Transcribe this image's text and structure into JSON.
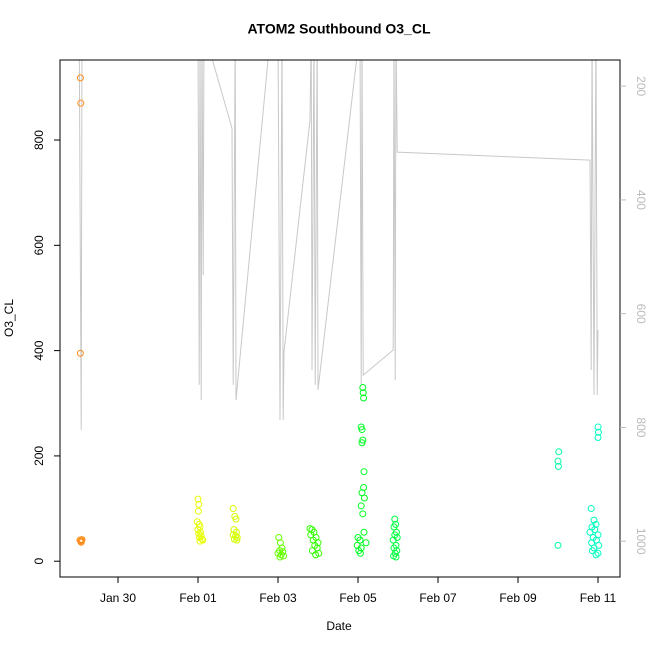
{
  "chart_data": {
    "type": "scatter",
    "title": "ATOM2 Southbound O3_CL",
    "x_label": "Date",
    "y_label": "O3_CL",
    "xlim": [
      28.55,
      42.55
    ],
    "xticks": [
      {
        "value": 30,
        "label": "Jan 30"
      },
      {
        "value": 32,
        "label": "Feb 01"
      },
      {
        "value": 34,
        "label": "Feb 03"
      },
      {
        "value": 36,
        "label": "Feb 05"
      },
      {
        "value": 38,
        "label": "Feb 07"
      },
      {
        "value": 40,
        "label": "Feb 09"
      },
      {
        "value": 42,
        "label": "Feb 11"
      }
    ],
    "ylim": [
      -30,
      952
    ],
    "yticks": [
      0,
      200,
      400,
      600,
      800
    ],
    "y2lim": [
      1063,
      154
    ],
    "y2ticks": [
      200,
      400,
      600,
      800,
      1000
    ],
    "y2color": "#bbbbbb",
    "series": [
      {
        "type": "scatter",
        "x": [
          29.06,
          29.07,
          29.06,
          29.05,
          29.07,
          29.08,
          29.1,
          29.09,
          32.0,
          32.02,
          32.01,
          31.98,
          32.03,
          32.05,
          32.0,
          32.06,
          32.02,
          32.08,
          32.04,
          32.1,
          32.12,
          32.05,
          32.88,
          32.92,
          32.95,
          32.9,
          32.96,
          32.88,
          32.94,
          32.98,
          32.91,
          32.97,
          34.02,
          34.06,
          34.1,
          34.04,
          34.12,
          34.0,
          34.08,
          34.14,
          34.05,
          34.8,
          34.85,
          34.9,
          34.82,
          34.95,
          34.88,
          35.0,
          34.92,
          34.98,
          34.86,
          35.02,
          34.94,
          36.12,
          36.13,
          36.14,
          36.08,
          36.1,
          36.12,
          36.1,
          36.15,
          36.14,
          36.1,
          36.16,
          36.08,
          36.12,
          36.15,
          36.0,
          36.05,
          36.2,
          35.98,
          36.08,
          36.02,
          36.06,
          36.92,
          36.94,
          36.9,
          36.96,
          36.92,
          36.98,
          36.88,
          36.95,
          36.9,
          36.97,
          36.93,
          36.89,
          36.95,
          41.02,
          41.0,
          41.01,
          41.0,
          42.0,
          42.01,
          42.0,
          41.83,
          41.9,
          41.95,
          41.85,
          41.92,
          41.8,
          42.0,
          41.88,
          41.96,
          41.84,
          42.02,
          41.9,
          41.86,
          42.0,
          41.95
        ],
        "values": [
          918,
          870,
          395,
          40,
          38,
          36,
          41,
          39,
          118,
          108,
          95,
          75,
          70,
          65,
          60,
          55,
          52,
          48,
          45,
          42,
          40,
          38,
          100,
          85,
          80,
          60,
          55,
          50,
          48,
          45,
          42,
          40,
          45,
          35,
          25,
          20,
          18,
          15,
          12,
          10,
          8,
          62,
          60,
          55,
          50,
          45,
          40,
          35,
          30,
          25,
          20,
          15,
          12,
          330,
          320,
          310,
          255,
          250,
          230,
          225,
          170,
          140,
          130,
          120,
          105,
          90,
          55,
          45,
          40,
          35,
          30,
          25,
          20,
          15,
          80,
          70,
          65,
          55,
          50,
          45,
          40,
          30,
          25,
          20,
          15,
          10,
          8,
          208,
          190,
          180,
          30,
          255,
          245,
          235,
          100,
          78,
          70,
          65,
          60,
          55,
          50,
          45,
          40,
          35,
          30,
          25,
          20,
          15,
          12
        ],
        "colors": [
          "#ff8c1a",
          "#ff8c1a",
          "#ff8c1a",
          "#ff8c1a",
          "#ff8c1a",
          "#ff8c1a",
          "#ff8c1a",
          "#ff8c1a",
          "#e6ff00",
          "#e6ff00",
          "#e6ff00",
          "#e6ff00",
          "#e6ff00",
          "#e6ff00",
          "#e6ff00",
          "#e6ff00",
          "#e6ff00",
          "#e6ff00",
          "#e6ff00",
          "#e6ff00",
          "#e6ff00",
          "#e6ff00",
          "#d4ff00",
          "#d4ff00",
          "#d4ff00",
          "#d4ff00",
          "#d4ff00",
          "#d4ff00",
          "#d4ff00",
          "#d4ff00",
          "#d4ff00",
          "#d4ff00",
          "#66ff00",
          "#66ff00",
          "#66ff00",
          "#66ff00",
          "#66ff00",
          "#66ff00",
          "#66ff00",
          "#66ff00",
          "#66ff00",
          "#33ff00",
          "#33ff00",
          "#33ff00",
          "#33ff00",
          "#33ff00",
          "#33ff00",
          "#33ff00",
          "#33ff00",
          "#33ff00",
          "#33ff00",
          "#33ff00",
          "#33ff00",
          "#00ff20",
          "#00ff20",
          "#00ff20",
          "#00ff20",
          "#00ff20",
          "#00ff20",
          "#00ff20",
          "#00ff20",
          "#00ff20",
          "#00ff20",
          "#00ff20",
          "#00ff20",
          "#00ff20",
          "#00ff20",
          "#00ff20",
          "#00ff20",
          "#00ff20",
          "#00ff20",
          "#00ff20",
          "#00ff20",
          "#00ff20",
          "#00ff40",
          "#00ff40",
          "#00ff40",
          "#00ff40",
          "#00ff40",
          "#00ff40",
          "#00ff40",
          "#00ff40",
          "#00ff40",
          "#00ff40",
          "#00ff40",
          "#00ff40",
          "#00ff40",
          "#00ffa0",
          "#00ffa0",
          "#00ffa0",
          "#00ffa0",
          "#00ffc0",
          "#00ffc0",
          "#00ffc0",
          "#00ffc0",
          "#00ffc0",
          "#00ffc0",
          "#00ffc0",
          "#00ffc0",
          "#00ffc0",
          "#00ffc0",
          "#00ffc0",
          "#00ffc0",
          "#00ffc0",
          "#00ffc0",
          "#00ffc0",
          "#00ffc0",
          "#00ffc0",
          "#00ffc0"
        ]
      },
      {
        "type": "line",
        "axis": "y2",
        "color": "#c8c8c8",
        "x": [
          29.03,
          29.08,
          29.1,
          32.0,
          32.03,
          32.05,
          32.08,
          32.1,
          32.13,
          32.15,
          32.85,
          32.88,
          32.93,
          32.95,
          33.75,
          34.0,
          34.05,
          34.1,
          34.13,
          34.15,
          34.8,
          34.83,
          34.85,
          34.9,
          34.93,
          34.98,
          35.0,
          36.05,
          36.08,
          36.1,
          36.13,
          36.88,
          36.9,
          36.93,
          36.95,
          36.98,
          41.8,
          41.83,
          41.85,
          41.9,
          41.95,
          41.98,
          42.0
        ],
        "values": [
          102,
          804,
          102,
          102,
          725,
          102,
          752,
          102,
          532,
          102,
          274,
          725,
          102,
          752,
          154,
          102,
          787,
          102,
          787,
          667,
          260,
          102,
          699,
          102,
          725,
          102,
          734,
          102,
          725,
          102,
          708,
          664,
          102,
          717,
          102,
          316,
          330,
          699,
          102,
          743,
          102,
          743,
          629
        ]
      }
    ]
  }
}
